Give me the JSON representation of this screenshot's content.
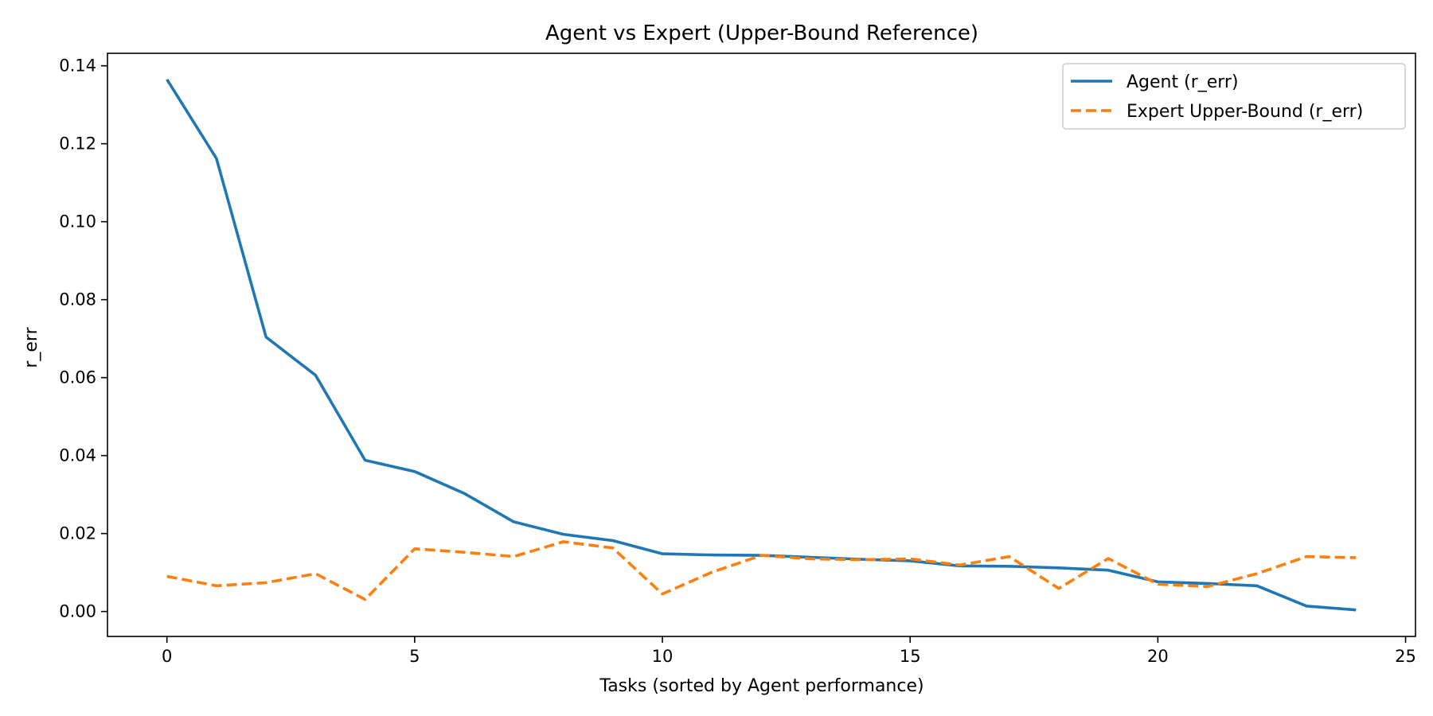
{
  "chart_data": {
    "type": "line",
    "title": "Agent vs Expert (Upper-Bound Reference)",
    "xlabel": "Tasks (sorted by Agent performance)",
    "ylabel": "r_err",
    "xlim": [
      -1.2,
      25.2
    ],
    "ylim": [
      -0.0064,
      0.1432
    ],
    "xticks": [
      0,
      5,
      10,
      15,
      20,
      25
    ],
    "xtick_labels": [
      "0",
      "5",
      "10",
      "15",
      "20",
      "25"
    ],
    "yticks": [
      0.0,
      0.02,
      0.04,
      0.06,
      0.08,
      0.1,
      0.12,
      0.14
    ],
    "ytick_labels": [
      "0.00",
      "0.02",
      "0.04",
      "0.06",
      "0.08",
      "0.10",
      "0.12",
      "0.14"
    ],
    "grid": false,
    "legend_position": "top-right",
    "x": [
      0,
      1,
      2,
      3,
      4,
      5,
      6,
      7,
      8,
      9,
      10,
      11,
      12,
      13,
      14,
      15,
      16,
      17,
      18,
      19,
      20,
      21,
      22,
      23,
      24
    ],
    "series": [
      {
        "name": "Agent (r_err)",
        "color": "#1f77b4",
        "style": "solid",
        "values": [
          0.1365,
          0.1162,
          0.0704,
          0.0606,
          0.0388,
          0.0359,
          0.0303,
          0.023,
          0.0198,
          0.0182,
          0.0148,
          0.0145,
          0.0144,
          0.0139,
          0.0134,
          0.013,
          0.0117,
          0.0116,
          0.0112,
          0.0106,
          0.0076,
          0.0072,
          0.0066,
          0.0014,
          0.0004
        ]
      },
      {
        "name": "Expert Upper-Bound (r_err)",
        "color": "#ff7f0e",
        "style": "dashed",
        "values": [
          0.009,
          0.0066,
          0.0074,
          0.0097,
          0.0031,
          0.0161,
          0.0152,
          0.0141,
          0.0179,
          0.0163,
          0.0045,
          0.0101,
          0.0144,
          0.0135,
          0.0133,
          0.0135,
          0.0119,
          0.0141,
          0.0059,
          0.0136,
          0.007,
          0.0064,
          0.0097,
          0.0141,
          0.0138
        ]
      }
    ]
  }
}
